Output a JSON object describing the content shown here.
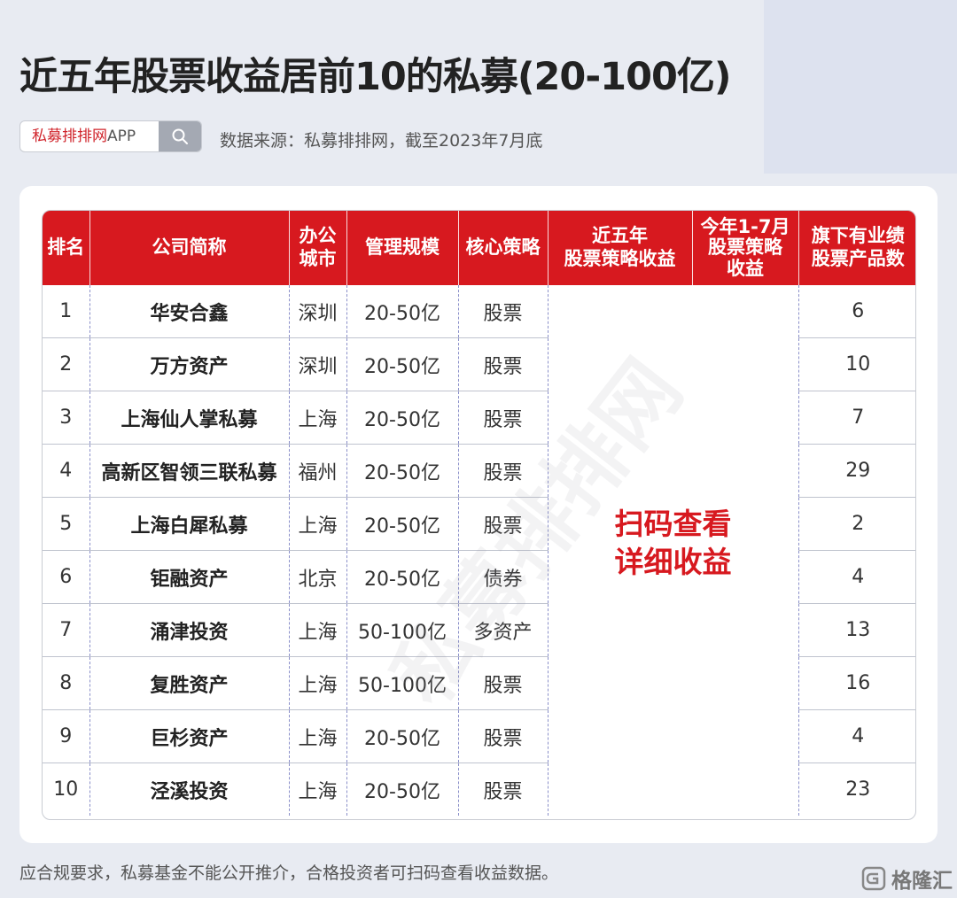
{
  "header": {
    "title": "近五年股票收益居前10的私募(20-100亿)",
    "search_label": "私募排排网",
    "search_label_suffix": "APP",
    "source": "数据来源：私募排排网，截至2023年7月底"
  },
  "table": {
    "columns": {
      "rank": "排名",
      "company": "公司简称",
      "city_1": "办公",
      "city_2": "城市",
      "scale": "管理规模",
      "strategy": "核心策略",
      "five_year_1": "近五年",
      "five_year_2": "股票策略收益",
      "ytd_1": "今年1-7月",
      "ytd_2": "股票策略",
      "ytd_3": "收益",
      "products_1": "旗下有业绩",
      "products_2": "股票产品数"
    },
    "rows": [
      {
        "rank": "1",
        "company": "华安合鑫",
        "city": "深圳",
        "scale": "20-50亿",
        "strategy": "股票",
        "products": "6"
      },
      {
        "rank": "2",
        "company": "万方资产",
        "city": "深圳",
        "scale": "20-50亿",
        "strategy": "股票",
        "products": "10"
      },
      {
        "rank": "3",
        "company": "上海仙人掌私募",
        "city": "上海",
        "scale": "20-50亿",
        "strategy": "股票",
        "products": "7"
      },
      {
        "rank": "4",
        "company": "高新区智领三联私募",
        "city": "福州",
        "scale": "20-50亿",
        "strategy": "股票",
        "products": "29"
      },
      {
        "rank": "5",
        "company": "上海白犀私募",
        "city": "上海",
        "scale": "20-50亿",
        "strategy": "股票",
        "products": "2"
      },
      {
        "rank": "6",
        "company": "钜融资产",
        "city": "北京",
        "scale": "20-50亿",
        "strategy": "债券",
        "products": "4"
      },
      {
        "rank": "7",
        "company": "涌津投资",
        "city": "上海",
        "scale": "50-100亿",
        "strategy": "多资产",
        "products": "13"
      },
      {
        "rank": "8",
        "company": "复胜资产",
        "city": "上海",
        "scale": "50-100亿",
        "strategy": "股票",
        "products": "16"
      },
      {
        "rank": "9",
        "company": "巨杉资产",
        "city": "上海",
        "scale": "20-50亿",
        "strategy": "股票",
        "products": "4"
      },
      {
        "rank": "10",
        "company": "泾溪投资",
        "city": "上海",
        "scale": "20-50亿",
        "strategy": "股票",
        "products": "23"
      }
    ],
    "qr_note_1": "扫码查看",
    "qr_note_2": "详细收益"
  },
  "watermark": "私募排排网",
  "footer": {
    "note": "应合规要求，私募基金不能公开推介，合格投资者可扫码查看收益数据。",
    "logo_text": "格隆汇"
  },
  "colors": {
    "accent_red": "#d7191f",
    "page_bg": "#e8ebf2"
  },
  "icons": {
    "search": "search-icon",
    "logo": "gelonghui-logo-icon"
  }
}
